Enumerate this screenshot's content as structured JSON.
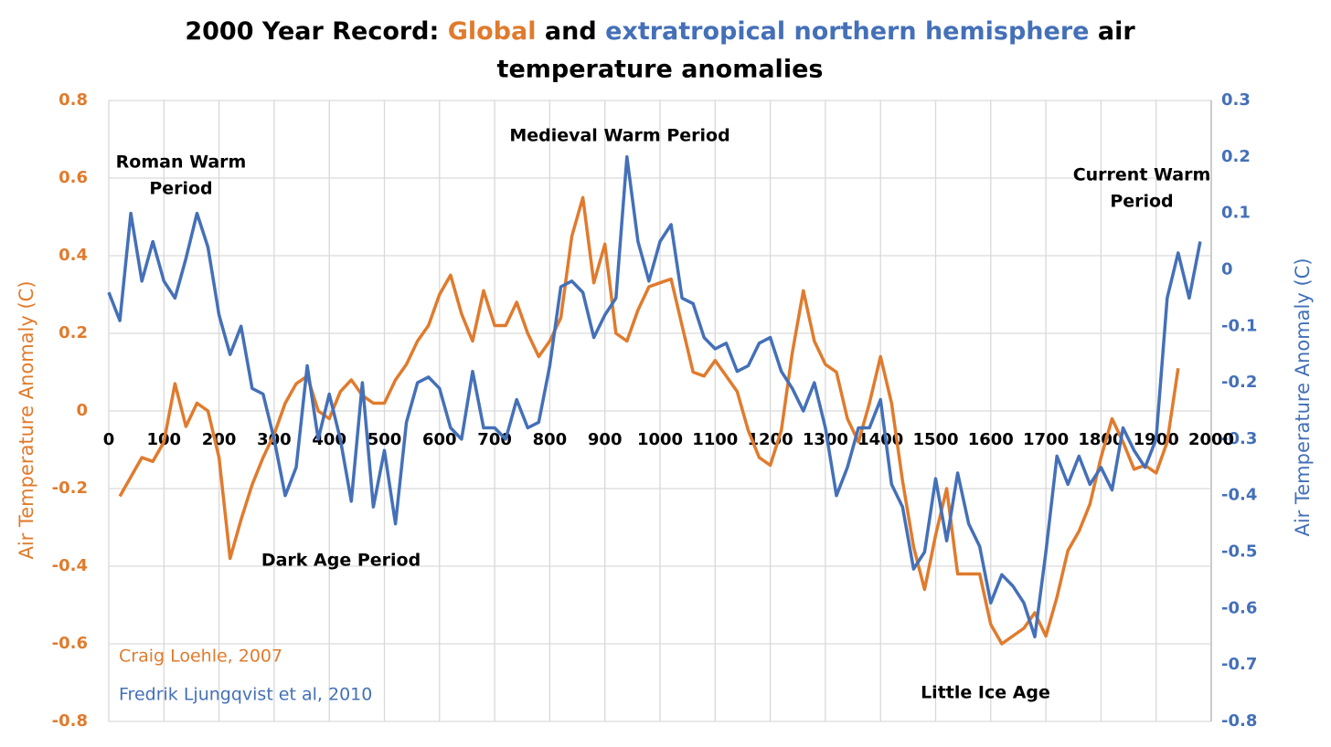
{
  "chart_data": {
    "type": "line",
    "title": [
      "2000 Year Record:",
      "Global",
      "and",
      "extratropical northern hemisphere",
      "air",
      "temperature anomalies"
    ],
    "y_label": "Air Temperature Anomaly (C)",
    "y2_label": "Air Temperature Anomaly (C)",
    "xlim": [
      0,
      2000
    ],
    "xticks": [
      0,
      100,
      200,
      300,
      400,
      500,
      600,
      700,
      800,
      900,
      1000,
      1100,
      1200,
      1300,
      1400,
      1500,
      1600,
      1700,
      1800,
      1900,
      2000
    ],
    "ylim": [
      -0.8,
      0.8
    ],
    "yticks": [
      0.8,
      0.6,
      0.4,
      0.2,
      0,
      -0.2,
      -0.4,
      -0.6,
      -0.8
    ],
    "y2lim": [
      -0.8,
      0.3
    ],
    "y2ticks": [
      0.3,
      0.2,
      0.1,
      0,
      -0.1,
      -0.2,
      -0.3,
      -0.4,
      -0.5,
      -0.6,
      -0.7,
      -0.8
    ],
    "grid": true,
    "x": [
      0,
      20,
      40,
      60,
      80,
      100,
      120,
      140,
      160,
      180,
      200,
      220,
      240,
      260,
      280,
      300,
      320,
      340,
      360,
      380,
      400,
      420,
      440,
      460,
      480,
      500,
      520,
      540,
      560,
      580,
      600,
      620,
      640,
      660,
      680,
      700,
      720,
      740,
      760,
      780,
      800,
      820,
      840,
      860,
      880,
      900,
      920,
      940,
      960,
      980,
      1000,
      1020,
      1040,
      1060,
      1080,
      1100,
      1120,
      1140,
      1160,
      1180,
      1200,
      1220,
      1240,
      1260,
      1280,
      1300,
      1320,
      1340,
      1360,
      1380,
      1400,
      1420,
      1440,
      1460,
      1480,
      1500,
      1520,
      1540,
      1560,
      1580,
      1600,
      1620,
      1640,
      1660,
      1680,
      1700,
      1720,
      1740,
      1760,
      1780,
      1800,
      1820,
      1840,
      1860,
      1880,
      1900,
      1920,
      1940,
      1960,
      1980
    ],
    "series": [
      {
        "name": "Craig Loehle, 2007",
        "color": "#e07b2d",
        "values": [
          null,
          -0.22,
          -0.17,
          -0.12,
          -0.13,
          -0.08,
          0.07,
          -0.04,
          0.02,
          0.0,
          -0.12,
          -0.38,
          -0.28,
          -0.19,
          -0.12,
          -0.06,
          0.02,
          0.07,
          0.09,
          0.0,
          -0.02,
          0.05,
          0.08,
          0.04,
          0.02,
          0.02,
          0.08,
          0.12,
          0.18,
          0.22,
          0.3,
          0.35,
          0.25,
          0.18,
          0.31,
          0.22,
          0.22,
          0.28,
          0.2,
          0.14,
          0.18,
          0.24,
          0.45,
          0.55,
          0.33,
          0.43,
          0.2,
          0.18,
          0.26,
          0.32,
          0.33,
          0.34,
          0.22,
          0.1,
          0.09,
          0.13,
          0.09,
          0.05,
          -0.05,
          -0.12,
          -0.14,
          -0.05,
          0.15,
          0.31,
          0.18,
          0.12,
          0.1,
          -0.02,
          -0.08,
          0.02,
          0.14,
          0.02,
          -0.18,
          -0.35,
          -0.46,
          -0.32,
          -0.2,
          -0.42,
          -0.42,
          -0.42,
          -0.55,
          -0.6,
          -0.58,
          -0.56,
          -0.52,
          -0.58,
          -0.48,
          -0.36,
          -0.31,
          -0.24,
          -0.12,
          -0.02,
          -0.08,
          -0.15,
          -0.14,
          -0.16,
          -0.08,
          0.11,
          null,
          null
        ]
      },
      {
        "name": "Fredrik Ljungqvist et al, 2010",
        "color": "#4470b8",
        "axis": "y2",
        "values": [
          -0.04,
          -0.09,
          0.1,
          -0.02,
          0.05,
          -0.02,
          -0.05,
          0.02,
          0.1,
          0.04,
          -0.08,
          -0.15,
          -0.1,
          -0.21,
          -0.22,
          -0.3,
          -0.4,
          -0.35,
          -0.17,
          -0.3,
          -0.22,
          -0.3,
          -0.41,
          -0.2,
          -0.42,
          -0.32,
          -0.45,
          -0.27,
          -0.2,
          -0.19,
          -0.21,
          -0.28,
          -0.3,
          -0.18,
          -0.28,
          -0.28,
          -0.3,
          -0.23,
          -0.28,
          -0.27,
          -0.17,
          -0.03,
          -0.02,
          -0.04,
          -0.12,
          -0.08,
          -0.05,
          0.2,
          0.05,
          -0.02,
          0.05,
          0.08,
          -0.05,
          -0.06,
          -0.12,
          -0.14,
          -0.13,
          -0.18,
          -0.17,
          -0.13,
          -0.12,
          -0.18,
          -0.21,
          -0.25,
          -0.2,
          -0.28,
          -0.4,
          -0.35,
          -0.28,
          -0.28,
          -0.23,
          -0.38,
          -0.42,
          -0.53,
          -0.5,
          -0.37,
          -0.48,
          -0.36,
          -0.45,
          -0.49,
          -0.59,
          -0.54,
          -0.56,
          -0.59,
          -0.65,
          -0.5,
          -0.33,
          -0.38,
          -0.33,
          -0.38,
          -0.35,
          -0.39,
          -0.28,
          -0.32,
          -0.35,
          -0.3,
          -0.05,
          0.03,
          -0.05,
          0.05
        ]
      }
    ],
    "annotations": [
      {
        "lines": [
          "Roman Warm",
          "Period"
        ]
      },
      {
        "lines": [
          "Dark Age Period"
        ]
      },
      {
        "lines": [
          "Medieval Warm Period"
        ]
      },
      {
        "lines": [
          "Little Ice Age"
        ]
      },
      {
        "lines": [
          "Current Warm",
          "Period"
        ]
      }
    ]
  }
}
